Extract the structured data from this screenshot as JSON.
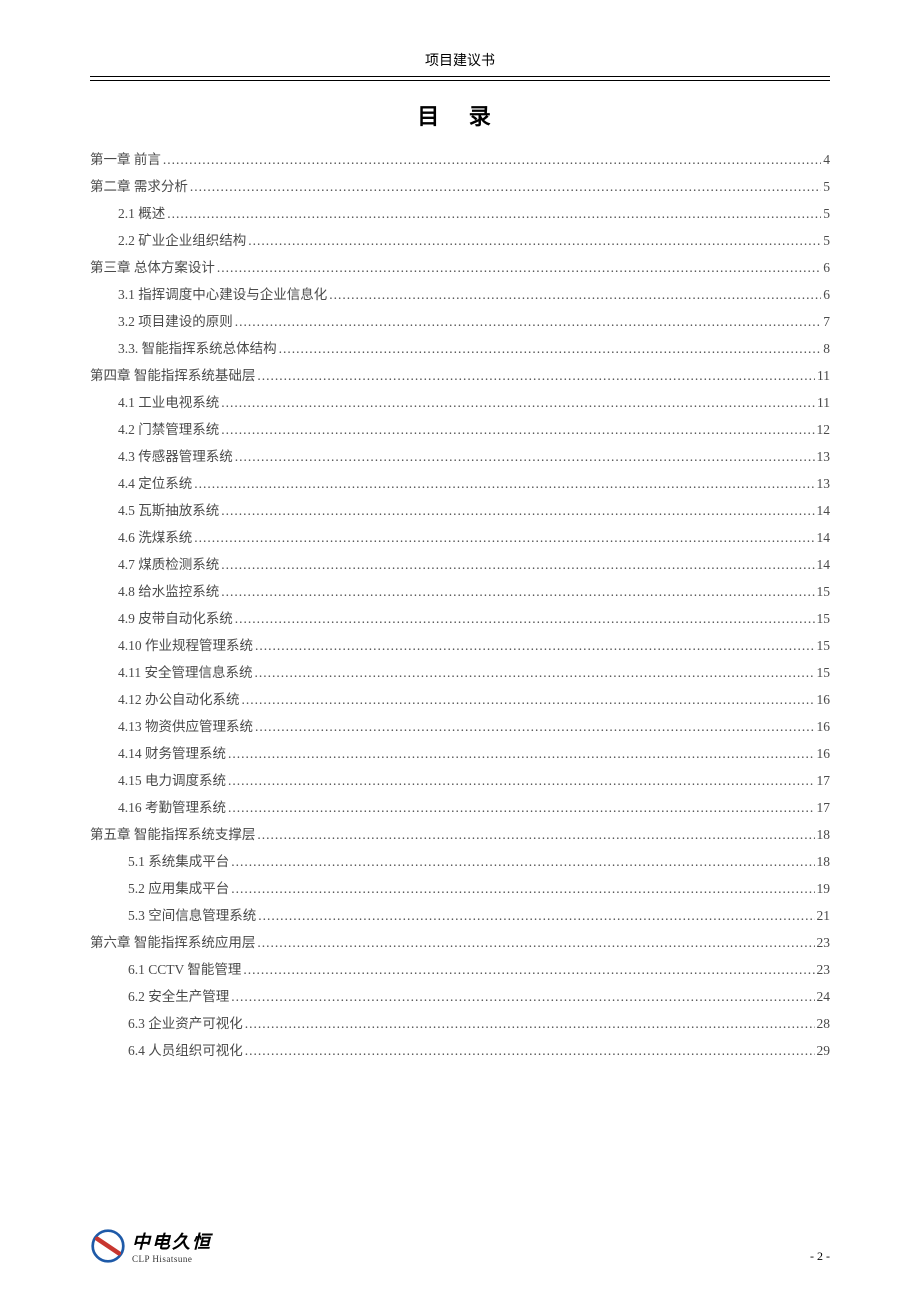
{
  "header": {
    "title": "项目建议书"
  },
  "toc": {
    "title": "目  录",
    "entries": [
      {
        "level": 0,
        "label": "第一章   前言",
        "page": "4"
      },
      {
        "level": 0,
        "label": "第二章   需求分析",
        "page": "5"
      },
      {
        "level": 1,
        "label": "2.1 概述",
        "page": "5"
      },
      {
        "level": 1,
        "label": "2.2 矿业企业组织结构",
        "page": "5"
      },
      {
        "level": 0,
        "label": "第三章   总体方案设计",
        "page": "6"
      },
      {
        "level": 1,
        "label": "3.1 指挥调度中心建设与企业信息化",
        "page": "6"
      },
      {
        "level": 1,
        "label": "3.2 项目建设的原则",
        "page": "7"
      },
      {
        "level": 1,
        "label": "3.3. 智能指挥系统总体结构",
        "page": "8"
      },
      {
        "level": 0,
        "label": "第四章   智能指挥系统基础层",
        "page": "11"
      },
      {
        "level": 1,
        "label": "4.1 工业电视系统",
        "page": "11"
      },
      {
        "level": 1,
        "label": "4.2 门禁管理系统",
        "page": "12"
      },
      {
        "level": 1,
        "label": "4.3 传感器管理系统",
        "page": "13"
      },
      {
        "level": 1,
        "label": "4.4 定位系统",
        "page": "13"
      },
      {
        "level": 1,
        "label": "4.5 瓦斯抽放系统",
        "page": "14"
      },
      {
        "level": 1,
        "label": "4.6 洗煤系统",
        "page": "14"
      },
      {
        "level": 1,
        "label": "4.7 煤质检测系统",
        "page": "14"
      },
      {
        "level": 1,
        "label": "4.8 给水监控系统",
        "page": "15"
      },
      {
        "level": 1,
        "label": "4.9 皮带自动化系统",
        "page": "15"
      },
      {
        "level": 1,
        "label": "4.10 作业规程管理系统",
        "page": "15"
      },
      {
        "level": 1,
        "label": "4.11 安全管理信息系统",
        "page": "15"
      },
      {
        "level": 1,
        "label": "4.12 办公自动化系统",
        "page": "16"
      },
      {
        "level": 1,
        "label": "4.13 物资供应管理系统",
        "page": "16"
      },
      {
        "level": 1,
        "label": "4.14 财务管理系统",
        "page": "16"
      },
      {
        "level": 1,
        "label": "4.15 电力调度系统",
        "page": "17"
      },
      {
        "level": 1,
        "label": "4.16 考勤管理系统",
        "page": "17"
      },
      {
        "level": 0,
        "label": "第五章           智能指挥系统支撑层",
        "page": "18"
      },
      {
        "level": 2,
        "label": "5.1            系统集成平台",
        "page": "18"
      },
      {
        "level": 2,
        "label": "5.2            应用集成平台",
        "page": "19"
      },
      {
        "level": 2,
        "label": "5.3            空间信息管理系统",
        "page": "21"
      },
      {
        "level": 0,
        "label": "第六章           智能指挥系统应用层",
        "page": "23"
      },
      {
        "level": 2,
        "label": "6.1            CCTV 智能管理",
        "page": "23"
      },
      {
        "level": 2,
        "label": "6.2            安全生产管理",
        "page": "24"
      },
      {
        "level": 2,
        "label": "6.3            企业资产可视化",
        "page": "28"
      },
      {
        "level": 2,
        "label": "6.4            人员组织可视化",
        "page": "29"
      }
    ]
  },
  "footer": {
    "logo_cn": "中电久恒",
    "logo_en": "CLP Hisatsune",
    "page_no": "- 2 -"
  },
  "colors": {
    "text": "#4a4a4a",
    "black": "#000000",
    "logo_blue": "#1e5aa8",
    "logo_red": "#c8362f"
  }
}
